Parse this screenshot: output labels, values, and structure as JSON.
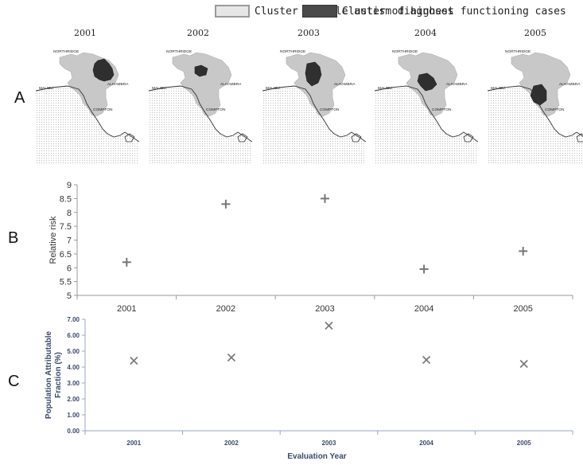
{
  "legend": {
    "items": [
      {
        "label": "Cluster of sole autism diagnoses",
        "color": "#e6e6e6"
      },
      {
        "label": "Cluster of highest functioning cases",
        "color": "#4a4a4a"
      }
    ]
  },
  "panels": {
    "a": "A",
    "b": "B",
    "c": "C"
  },
  "maps": {
    "place_names": [
      "NORTHRIDGE",
      "MALIBU",
      "ALHAMBRA",
      "COMPTON"
    ],
    "years": [
      "2001",
      "2002",
      "2003",
      "2004",
      "2005"
    ]
  },
  "chart_data": [
    {
      "type": "scatter",
      "title": "",
      "xlabel": "",
      "ylabel": "Relative risk",
      "categories": [
        "2001",
        "2002",
        "2003",
        "2004",
        "2005"
      ],
      "values": [
        6.2,
        8.3,
        8.5,
        5.95,
        6.6
      ],
      "ylim": [
        5,
        9
      ],
      "yticks": [
        "5",
        "5.5",
        "6",
        "6.5",
        "7",
        "7.5",
        "8",
        "8.5",
        "9"
      ],
      "marker": "+",
      "marker_color": "#777777",
      "grid": false
    },
    {
      "type": "scatter",
      "title": "",
      "xlabel": "Evaluation Year",
      "ylabel": "Population Attributable Fraction (%)",
      "categories": [
        "2001",
        "2002",
        "2003",
        "2004",
        "2005"
      ],
      "values": [
        4.4,
        4.6,
        6.6,
        4.45,
        4.2
      ],
      "ylim": [
        0,
        7
      ],
      "yticks": [
        "0.00",
        "1.00",
        "2.00",
        "3.00",
        "4.00",
        "5.00",
        "6.00",
        "7.00"
      ],
      "marker": "x",
      "marker_color": "#777777",
      "grid": false
    }
  ]
}
